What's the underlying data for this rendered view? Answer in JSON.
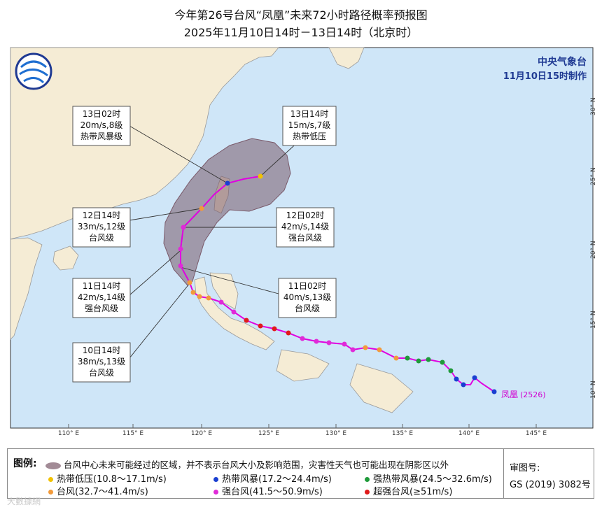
{
  "title": "今年第26号台风“凤凰”未来72小时路径概率预报图",
  "subtitle": "2025年11月10日14时－13日14时（北京时）",
  "agency": "中央气象台",
  "issued": "11月10日15时制作",
  "typhoon_label": "凤凰",
  "typhoon_code": "(2526)",
  "lon_labels": [
    "110° E",
    "115° E",
    "120° E",
    "125° E",
    "130° E",
    "135° E",
    "140° E",
    "145° E"
  ],
  "lat_labels": [
    "10° N",
    "15° N",
    "20° N",
    "25° N",
    "30° N"
  ],
  "annotations": [
    {
      "time": "13日02时",
      "wind": "20m/s,8级",
      "level": "热带风暴级"
    },
    {
      "time": "13日14时",
      "wind": "15m/s,7级",
      "level": "热带低压"
    },
    {
      "time": "12日14时",
      "wind": "33m/s,12级",
      "level": "台风级"
    },
    {
      "time": "12日02时",
      "wind": "42m/s,14级",
      "level": "强台风级"
    },
    {
      "time": "11日14时",
      "wind": "42m/s,14级",
      "level": "强台风级"
    },
    {
      "time": "11日02时",
      "wind": "40m/s,13级",
      "level": "台风级"
    },
    {
      "time": "10日14时",
      "wind": "38m/s,13级",
      "level": "台风级"
    }
  ],
  "legend": {
    "title": "图例:",
    "cone_text": "台风中心未来可能经过的区域，并不表示台风大小及影响范围，灾害性天气也可能出现在阴影区以外",
    "items": [
      {
        "label": "热带低压(10.8～17.1m/s)",
        "color": "#f2c200"
      },
      {
        "label": "热带风暴(17.2～24.4m/s)",
        "color": "#1a3fd1"
      },
      {
        "label": "强热带风暴(24.5～32.6m/s)",
        "color": "#1f9a3a"
      },
      {
        "label": "台风(32.7～41.4m/s)",
        "color": "#f29a3a"
      },
      {
        "label": "强台风(41.5～50.9m/s)",
        "color": "#e02ad8"
      },
      {
        "label": "超强台风(≥51m/s)",
        "color": "#e01a1a"
      }
    ]
  },
  "review": {
    "label": "审图号:",
    "number": "GS (2019) 3082号"
  },
  "watermark": "大數據網",
  "colors": {
    "track": "#e000e0",
    "cone": "#7a5a6a",
    "land": "#f5ecd5",
    "sea": "#cfe6f8",
    "agency": "#1f3a93"
  }
}
